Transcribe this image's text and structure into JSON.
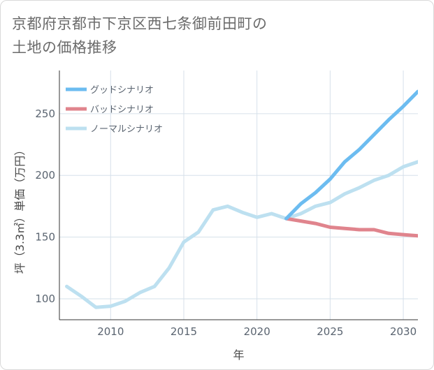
{
  "title_line1": "京都府京都市下京区西七条御前田町の",
  "title_line2": "土地の価格推移",
  "chart_data": {
    "type": "line",
    "xlabel": "年",
    "ylabel": "坪（3.3㎡）単価（万円）",
    "xlim": [
      2006.5,
      2031
    ],
    "ylim": [
      83,
      285
    ],
    "x_ticks": [
      2010,
      2015,
      2020,
      2025,
      2030
    ],
    "y_ticks": [
      100,
      150,
      200,
      250
    ],
    "grid": true,
    "legend_position": "top-left",
    "series": [
      {
        "name": "グッドシナリオ",
        "color": "#6cbcf0",
        "x": [
          2022,
          2023,
          2024,
          2025,
          2026,
          2027,
          2028,
          2029,
          2030,
          2031
        ],
        "y": [
          165,
          177,
          186,
          197,
          211,
          221,
          233,
          245,
          256,
          268
        ]
      },
      {
        "name": "バッドシナリオ",
        "color": "#e0848d",
        "x": [
          2022,
          2023,
          2024,
          2025,
          2026,
          2027,
          2028,
          2029,
          2030,
          2031
        ],
        "y": [
          165,
          163,
          161,
          158,
          157,
          156,
          156,
          153,
          152,
          151
        ]
      },
      {
        "name": "ノーマルシナリオ",
        "color": "#bde0f0",
        "x": [
          2007,
          2008,
          2009,
          2010,
          2011,
          2012,
          2013,
          2014,
          2015,
          2016,
          2017,
          2018,
          2019,
          2020,
          2021,
          2022,
          2023,
          2024,
          2025,
          2026,
          2027,
          2028,
          2029,
          2030,
          2031
        ],
        "y": [
          110,
          102,
          93,
          94,
          98,
          105,
          110,
          125,
          146,
          154,
          172,
          175,
          170,
          166,
          169,
          165,
          169,
          175,
          178,
          185,
          190,
          196,
          200,
          207,
          211
        ]
      }
    ]
  }
}
